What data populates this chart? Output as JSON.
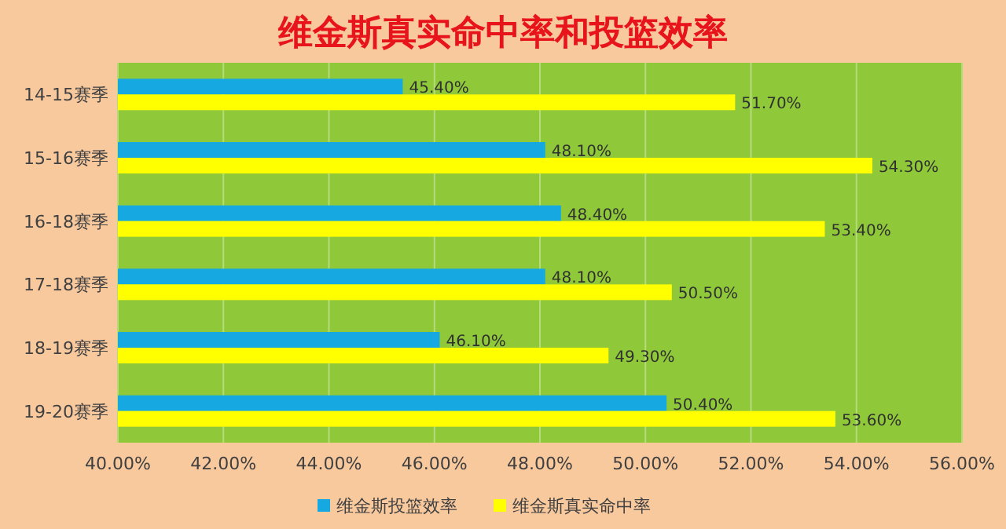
{
  "chart_data": {
    "type": "bar",
    "orientation": "horizontal",
    "title": "维金斯真实命中率和投篮效率",
    "categories": [
      "14-15赛季",
      "15-16赛季",
      "16-18赛季",
      "17-18赛季",
      "18-19赛季",
      "19-20赛季"
    ],
    "series": [
      {
        "name": "维金斯投篮效率",
        "color": "#16a9e1",
        "values": [
          45.4,
          48.1,
          48.4,
          48.1,
          46.1,
          50.4
        ],
        "value_labels": [
          "45.40%",
          "48.10%",
          "48.40%",
          "48.10%",
          "46.10%",
          "50.40%"
        ]
      },
      {
        "name": "维金斯真实命中率",
        "color": "#ffff00",
        "values": [
          51.7,
          54.3,
          53.4,
          50.5,
          49.3,
          53.6
        ],
        "value_labels": [
          "51.70%",
          "54.30%",
          "53.40%",
          "50.50%",
          "49.30%",
          "53.60%"
        ]
      }
    ],
    "xlim": [
      40,
      56
    ],
    "xticks": [
      {
        "value": 40,
        "label": "40.00%"
      },
      {
        "value": 42,
        "label": "42.00%"
      },
      {
        "value": 44,
        "label": "44.00%"
      },
      {
        "value": 46,
        "label": "46.00%"
      },
      {
        "value": 48,
        "label": "48.00%"
      },
      {
        "value": 50,
        "label": "50.00%"
      },
      {
        "value": 52,
        "label": "52.00%"
      },
      {
        "value": 54,
        "label": "54.00%"
      },
      {
        "value": 56,
        "label": "56.00%"
      }
    ],
    "grid": "x",
    "legend": "bottom"
  }
}
